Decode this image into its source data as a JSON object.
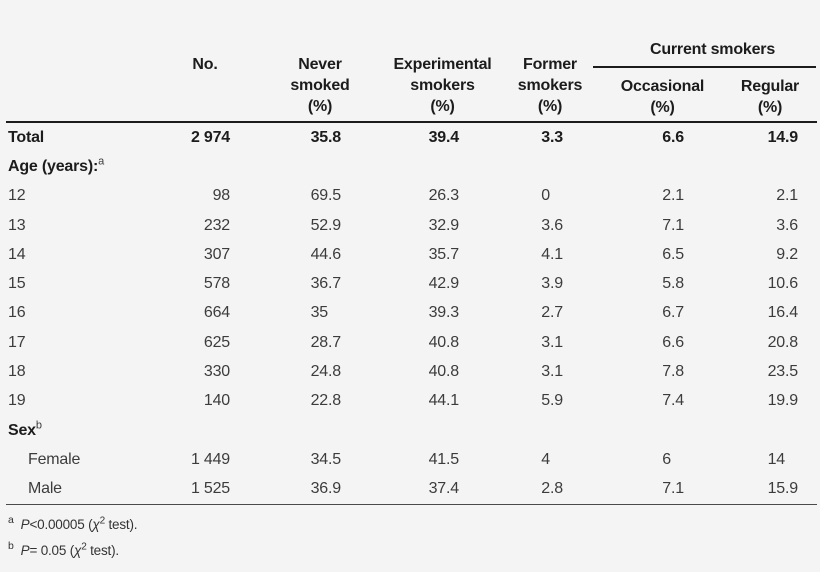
{
  "colors": {
    "background": "#f4f4f4",
    "text": "#3c3c3c",
    "heading": "#1c1c1c",
    "rule": "#1c1c1c"
  },
  "table": {
    "group_header": {
      "label": "Current smokers",
      "sub_columns": [
        "Occasional\n(%)",
        "Regular\n(%)"
      ]
    },
    "column_headers": [
      "",
      "No.",
      "Never\nsmoked\n(%)",
      "Experimental\nsmokers\n(%)",
      "Former\nsmokers\n(%)"
    ],
    "rows": [
      {
        "label": "Total",
        "sup": "",
        "bold": true,
        "indent": false,
        "values": [
          "2 974",
          "35.8",
          "39.4",
          "3.3",
          "6.6",
          "14.9"
        ]
      },
      {
        "label": "Age (years):",
        "sup": "a",
        "bold": true,
        "indent": false,
        "values": [
          "",
          "",
          "",
          "",
          "",
          ""
        ]
      },
      {
        "label": "12",
        "sup": "",
        "bold": false,
        "indent": false,
        "values": [
          "98",
          "69.5",
          "26.3",
          "0",
          "2.1",
          "2.1"
        ]
      },
      {
        "label": "13",
        "sup": "",
        "bold": false,
        "indent": false,
        "values": [
          "232",
          "52.9",
          "32.9",
          "3.6",
          "7.1",
          "3.6"
        ]
      },
      {
        "label": "14",
        "sup": "",
        "bold": false,
        "indent": false,
        "values": [
          "307",
          "44.6",
          "35.7",
          "4.1",
          "6.5",
          "9.2"
        ]
      },
      {
        "label": "15",
        "sup": "",
        "bold": false,
        "indent": false,
        "values": [
          "578",
          "36.7",
          "42.9",
          "3.9",
          "5.8",
          "10.6"
        ]
      },
      {
        "label": "16",
        "sup": "",
        "bold": false,
        "indent": false,
        "values": [
          "664",
          "35",
          "39.3",
          "2.7",
          "6.7",
          "16.4"
        ]
      },
      {
        "label": "17",
        "sup": "",
        "bold": false,
        "indent": false,
        "values": [
          "625",
          "28.7",
          "40.8",
          "3.1",
          "6.6",
          "20.8"
        ]
      },
      {
        "label": "18",
        "sup": "",
        "bold": false,
        "indent": false,
        "values": [
          "330",
          "24.8",
          "40.8",
          "3.1",
          "7.8",
          "23.5"
        ]
      },
      {
        "label": "19",
        "sup": "",
        "bold": false,
        "indent": false,
        "values": [
          "140",
          "22.8",
          "44.1",
          "5.9",
          "7.4",
          "19.9"
        ]
      },
      {
        "label": "Sex",
        "sup": "b",
        "bold": true,
        "indent": false,
        "values": [
          "",
          "",
          "",
          "",
          "",
          ""
        ]
      },
      {
        "label": "Female",
        "sup": "",
        "bold": false,
        "indent": true,
        "values": [
          "1 449",
          "34.5",
          "41.5",
          "4",
          "6",
          "14"
        ]
      },
      {
        "label": "Male",
        "sup": "",
        "bold": false,
        "indent": true,
        "values": [
          "1 525",
          "36.9",
          "37.4",
          "2.8",
          "7.1",
          "15.9"
        ]
      }
    ],
    "footnotes": [
      {
        "marker": "a",
        "segments": [
          {
            "text": "P",
            "italic": true
          },
          {
            "text": "<0.00005 ("
          },
          {
            "text": "χ",
            "italic": true
          },
          {
            "text": "2",
            "sup": true
          },
          {
            "text": " test)."
          }
        ]
      },
      {
        "marker": "b",
        "segments": [
          {
            "text": "P",
            "italic": true
          },
          {
            "text": "= 0.05 ("
          },
          {
            "text": "χ",
            "italic": true
          },
          {
            "text": "2",
            "sup": true
          },
          {
            "text": " test)."
          }
        ]
      }
    ]
  }
}
